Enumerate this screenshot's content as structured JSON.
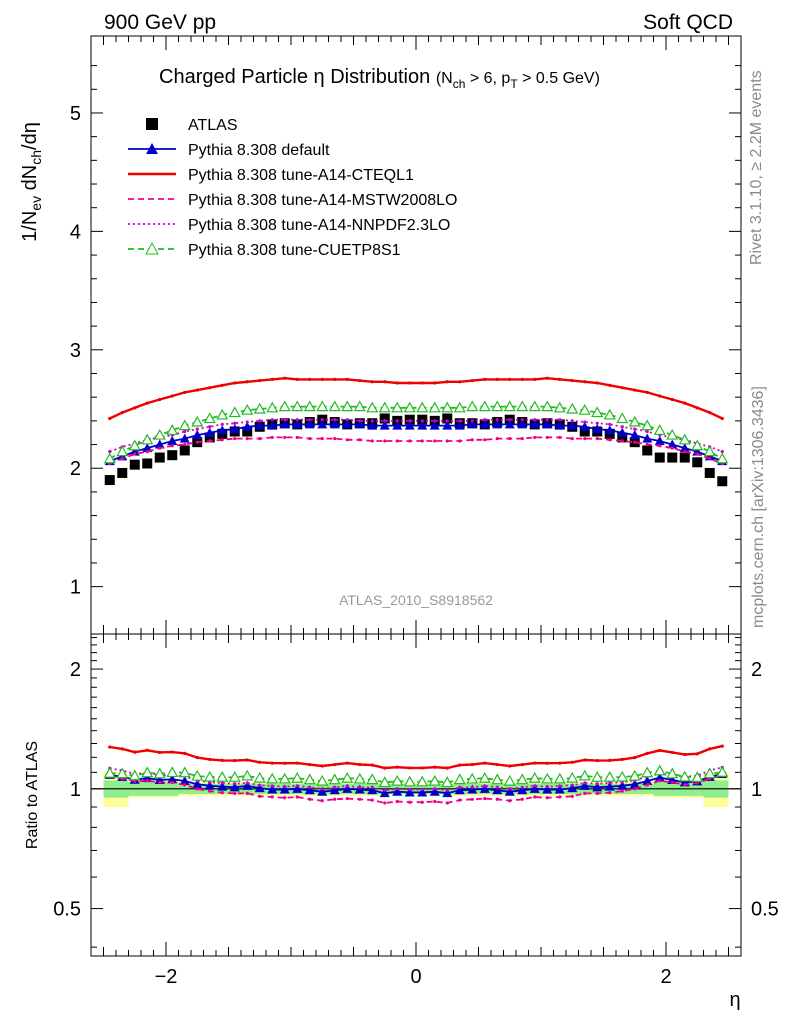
{
  "header": {
    "left": "900 GeV pp",
    "right": "Soft QCD"
  },
  "side_labels": {
    "rivet": "Rivet 3.1.10, ≥ 2.2M events",
    "mcplots": "mcplots.cern.ch [arXiv:1306.3436]"
  },
  "chart_data": [
    {
      "type": "line",
      "title_main": "Charged Particle η Distribution",
      "title_cut": "(N",
      "title_cut_sub1": "ch",
      "title_cut_mid": " > 6, p",
      "title_cut_sub2": "T",
      "title_cut_end": " > 0.5 GeV)",
      "ylabel": "1/N_ev dN_ch/dη",
      "analysis_label": "ATLAS_2010_S8918562",
      "xlim": [
        -2.6,
        2.6
      ],
      "ylim": [
        0.6,
        5.65
      ],
      "y_ticks": [
        1,
        2,
        3,
        4,
        5
      ],
      "x": [
        -2.45,
        -2.35,
        -2.25,
        -2.15,
        -2.05,
        -1.95,
        -1.85,
        -1.75,
        -1.65,
        -1.55,
        -1.45,
        -1.35,
        -1.25,
        -1.15,
        -1.05,
        -0.95,
        -0.85,
        -0.75,
        -0.65,
        -0.55,
        -0.45,
        -0.35,
        -0.25,
        -0.15,
        -0.05,
        0.05,
        0.15,
        0.25,
        0.35,
        0.45,
        0.55,
        0.65,
        0.75,
        0.85,
        0.95,
        1.05,
        1.15,
        1.25,
        1.35,
        1.45,
        1.55,
        1.65,
        1.75,
        1.85,
        1.95,
        2.05,
        2.15,
        2.25,
        2.35,
        2.45
      ],
      "series": [
        {
          "name": "ATLAS",
          "color": "#000000",
          "style": "points-square",
          "values": [
            1.9,
            1.96,
            2.03,
            2.04,
            2.09,
            2.11,
            2.15,
            2.22,
            2.26,
            2.29,
            2.31,
            2.31,
            2.35,
            2.37,
            2.38,
            2.37,
            2.39,
            2.41,
            2.39,
            2.37,
            2.38,
            2.38,
            2.42,
            2.4,
            2.41,
            2.41,
            2.4,
            2.42,
            2.38,
            2.38,
            2.37,
            2.39,
            2.41,
            2.39,
            2.37,
            2.38,
            2.37,
            2.35,
            2.31,
            2.31,
            2.29,
            2.26,
            2.22,
            2.15,
            2.09,
            2.09,
            2.09,
            2.05,
            1.96,
            1.89
          ]
        },
        {
          "name": "Pythia 8.308 default",
          "color": "#0000cc",
          "style": "line-triangle",
          "values": [
            2.06,
            2.1,
            2.14,
            2.17,
            2.2,
            2.23,
            2.25,
            2.28,
            2.3,
            2.32,
            2.33,
            2.35,
            2.36,
            2.36,
            2.37,
            2.37,
            2.37,
            2.37,
            2.37,
            2.37,
            2.37,
            2.36,
            2.36,
            2.36,
            2.36,
            2.36,
            2.36,
            2.36,
            2.36,
            2.37,
            2.37,
            2.37,
            2.37,
            2.37,
            2.37,
            2.37,
            2.36,
            2.36,
            2.35,
            2.33,
            2.32,
            2.3,
            2.28,
            2.25,
            2.23,
            2.2,
            2.17,
            2.14,
            2.1,
            2.06
          ]
        },
        {
          "name": "Pythia 8.308 tune-A14-CTEQL1",
          "color": "#ee0000",
          "style": "line-solid",
          "values": [
            2.42,
            2.47,
            2.51,
            2.55,
            2.58,
            2.61,
            2.64,
            2.66,
            2.68,
            2.7,
            2.72,
            2.73,
            2.74,
            2.75,
            2.76,
            2.75,
            2.75,
            2.75,
            2.75,
            2.75,
            2.74,
            2.73,
            2.73,
            2.72,
            2.72,
            2.72,
            2.72,
            2.73,
            2.73,
            2.74,
            2.75,
            2.75,
            2.75,
            2.75,
            2.75,
            2.76,
            2.75,
            2.74,
            2.73,
            2.72,
            2.7,
            2.68,
            2.66,
            2.64,
            2.61,
            2.58,
            2.55,
            2.51,
            2.47,
            2.42
          ]
        },
        {
          "name": "Pythia 8.308 tune-A14-MSTW2008LO",
          "color": "#ee0088",
          "style": "line-dashed",
          "values": [
            2.04,
            2.08,
            2.12,
            2.14,
            2.17,
            2.19,
            2.2,
            2.22,
            2.23,
            2.24,
            2.25,
            2.25,
            2.25,
            2.26,
            2.26,
            2.26,
            2.25,
            2.25,
            2.25,
            2.24,
            2.24,
            2.23,
            2.23,
            2.23,
            2.23,
            2.23,
            2.23,
            2.23,
            2.23,
            2.24,
            2.24,
            2.25,
            2.25,
            2.25,
            2.26,
            2.26,
            2.26,
            2.25,
            2.25,
            2.25,
            2.24,
            2.23,
            2.22,
            2.2,
            2.19,
            2.17,
            2.14,
            2.12,
            2.08,
            2.04
          ]
        },
        {
          "name": "Pythia 8.308 tune-A14-NNPDF2.3LO",
          "color": "#cc00cc",
          "style": "line-dotted",
          "values": [
            2.14,
            2.18,
            2.21,
            2.24,
            2.26,
            2.28,
            2.31,
            2.33,
            2.35,
            2.37,
            2.38,
            2.39,
            2.4,
            2.41,
            2.41,
            2.41,
            2.41,
            2.41,
            2.41,
            2.41,
            2.4,
            2.4,
            2.4,
            2.4,
            2.4,
            2.4,
            2.4,
            2.4,
            2.4,
            2.4,
            2.41,
            2.41,
            2.41,
            2.41,
            2.41,
            2.41,
            2.41,
            2.4,
            2.39,
            2.38,
            2.37,
            2.35,
            2.33,
            2.31,
            2.28,
            2.26,
            2.24,
            2.21,
            2.18,
            2.14
          ]
        },
        {
          "name": "Pythia 8.308 tune-CUETP8S1",
          "color": "#22bb22",
          "style": "line-dashed-open-triangle",
          "values": [
            2.08,
            2.14,
            2.19,
            2.24,
            2.28,
            2.32,
            2.36,
            2.39,
            2.42,
            2.45,
            2.47,
            2.49,
            2.5,
            2.51,
            2.52,
            2.52,
            2.52,
            2.52,
            2.52,
            2.52,
            2.52,
            2.51,
            2.51,
            2.51,
            2.51,
            2.51,
            2.51,
            2.51,
            2.51,
            2.52,
            2.52,
            2.52,
            2.52,
            2.52,
            2.52,
            2.52,
            2.51,
            2.5,
            2.49,
            2.47,
            2.45,
            2.42,
            2.39,
            2.36,
            2.32,
            2.28,
            2.24,
            2.19,
            2.14,
            2.08
          ]
        }
      ]
    },
    {
      "type": "line",
      "ylabel": "Ratio to ATLAS",
      "xlabel": "η",
      "xlim": [
        -2.6,
        2.6
      ],
      "ylim": [
        0.38,
        2.45
      ],
      "y_ticks": [
        0.5,
        1,
        2
      ],
      "y_tick_labels": [
        "0.5",
        "1",
        "2"
      ],
      "x_ticks": [
        -2,
        0,
        2
      ],
      "x_tick_labels": [
        "−2",
        "0",
        "2"
      ],
      "reference_line": 1,
      "bands": {
        "x_edges": [
          -2.5,
          -2.3,
          -1.9,
          1.9,
          2.3,
          2.5
        ],
        "stat_half_width": [
          0.05,
          0.04,
          0.03,
          0.04,
          0.05
        ],
        "total_half_width": [
          0.1,
          0.05,
          0.04,
          0.05,
          0.1
        ],
        "stat_color": "#90ee90",
        "total_color": "#ffff99"
      }
    }
  ]
}
